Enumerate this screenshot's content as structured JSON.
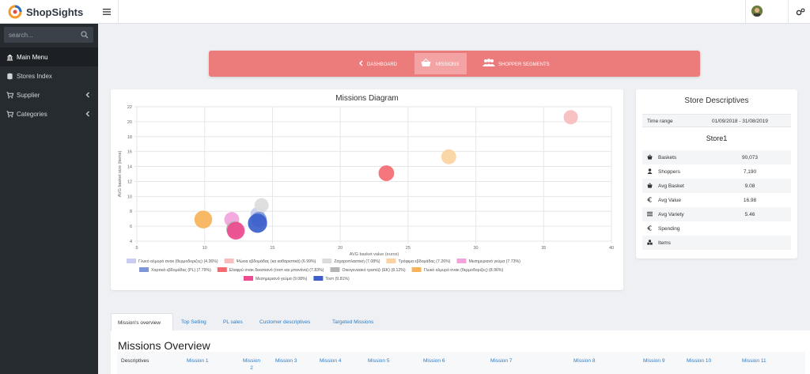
{
  "app": {
    "name": "ShopSights"
  },
  "sidebar": {
    "search_placeholder": "search...",
    "items": [
      {
        "label": "Main Menu",
        "icon": "bank-icon"
      },
      {
        "label": "Stores Index",
        "icon": "database-icon"
      },
      {
        "label": "Supplier",
        "icon": "cart-icon"
      },
      {
        "label": "Categories",
        "icon": "cart-icon"
      }
    ]
  },
  "banner": {
    "tabs": [
      {
        "label": "DASHBOARD",
        "icon": "chevron-left-icon"
      },
      {
        "label": "MISSIONS",
        "icon": "basket-icon"
      },
      {
        "label": "SHOPPER SEGMENTS",
        "icon": "users-icon"
      }
    ]
  },
  "chart_data": {
    "type": "scatter",
    "title": "Missions Diagram",
    "xlabel": "AVG basket value (euros)",
    "ylabel": "AVG basket size (items)",
    "xlim": [
      5,
      40
    ],
    "ylim": [
      4,
      22
    ],
    "xticks": [
      5,
      10,
      15,
      20,
      25,
      30,
      35,
      40
    ],
    "yticks": [
      4,
      6,
      8,
      10,
      12,
      14,
      16,
      18,
      20,
      22
    ],
    "grid": true,
    "legend_position": "bottom",
    "series": [
      {
        "name": "Γλυκό αλμυρό σνακ (θερμοδοριζες) (4.36%)",
        "color": "#c9cdef",
        "x": 13.9,
        "y": 7.6,
        "r": 1.0
      },
      {
        "name": "Ψώνια εβδομάδας (κα καθαριστικά) (6.99%)",
        "color": "#f8bdbd",
        "x": 37.0,
        "y": 20.6,
        "r": 1.0
      },
      {
        "name": "Ζαχαροπλαστική (7.08%)",
        "color": "#dcdcdc",
        "x": 14.2,
        "y": 8.8,
        "r": 1.0
      },
      {
        "name": "Τρόφιμα εβδομάδας (7.26%)",
        "color": "#fbd2a0",
        "x": 28.0,
        "y": 15.3,
        "r": 1.05
      },
      {
        "name": "Μεσημεριανό γεύμα (7.73%)",
        "color": "#f2a3dc",
        "x": 12.0,
        "y": 6.9,
        "r": 1.05
      },
      {
        "name": "Χαρτικά εβδομάδας (PL) (7.79%)",
        "color": "#7f96d6",
        "x": 14.0,
        "y": 6.9,
        "r": 1.1
      },
      {
        "name": "Ελαφρύ σνακ δεκατιανό (τοστ και μπανάνα) (7.83%)",
        "color": "#f46a72",
        "x": 23.4,
        "y": 13.1,
        "r": 1.1
      },
      {
        "name": "Οικογενειακό τραπέζι (EK) (8.12%)",
        "color": "#b5b5b5",
        "x": 12.2,
        "y": 5.6,
        "r": 1.15
      },
      {
        "name": "Γλυκό αλμυρό σνακ (θερμοδοριζες) (8.96%)",
        "color": "#f7b35a",
        "x": 9.9,
        "y": 6.9,
        "r": 1.25
      },
      {
        "name": "Μεσημεριανό γεύμα (9.08%)",
        "color": "#ee4b8e",
        "x": 12.3,
        "y": 5.4,
        "r": 1.25
      },
      {
        "name": "Τοστ (9.81%)",
        "color": "#3c5fcb",
        "x": 13.9,
        "y": 6.4,
        "r": 1.35
      }
    ]
  },
  "store": {
    "title": "Store Descriptives",
    "time_range_label": "Time range",
    "time_range_value": "01/09/2018 - 31/08/2019",
    "name": "Store1",
    "rows": [
      {
        "label": "Baskets",
        "value": "90,073",
        "icon": "basket-icon"
      },
      {
        "label": "Shoppers",
        "value": "7,190",
        "icon": "user-icon"
      },
      {
        "label": "Avg Basket",
        "value": "9.08",
        "icon": "basket-icon"
      },
      {
        "label": "Avg Value",
        "value": "16.98",
        "icon": "euro-icon"
      },
      {
        "label": "Avg Variety",
        "value": "5.46",
        "icon": "list-icon"
      },
      {
        "label": "Spending",
        "value": "",
        "icon": "euro-icon"
      },
      {
        "label": "Items",
        "value": "",
        "icon": "cubes-icon"
      }
    ]
  },
  "tabs": [
    {
      "label": "Mission's overview"
    },
    {
      "label": "Top Selling"
    },
    {
      "label": "PL sales"
    },
    {
      "label": "Customer descriptives"
    },
    {
      "label": "Targeted Missions"
    }
  ],
  "overview": {
    "title": "Missions Overview",
    "columns": [
      "Descriptives",
      "Mission 1",
      "Mission 2",
      "Mission 3",
      "Mission 4",
      "Mission 5",
      "Mission 6",
      "Mission 7",
      "Mission 8",
      "Mission 9",
      "Mission 10",
      "Mission 11"
    ]
  }
}
